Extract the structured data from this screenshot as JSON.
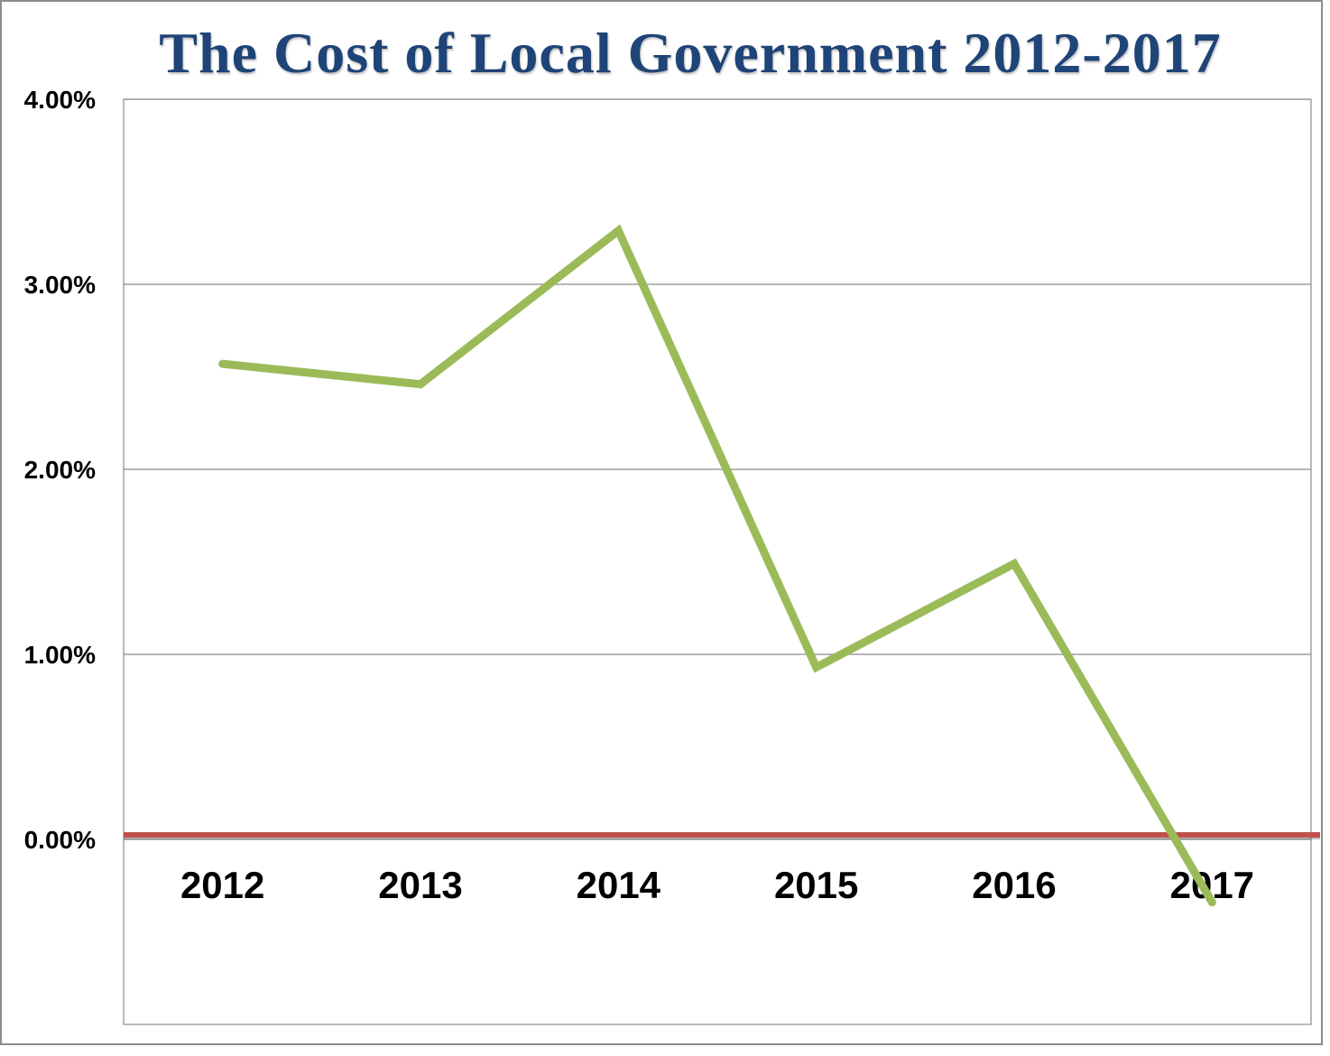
{
  "chart_data": {
    "type": "line",
    "title": "The Cost of Local Government 2012-2017",
    "xlabel": "",
    "ylabel": "",
    "categories": [
      "2012",
      "2013",
      "2014",
      "2015",
      "2016",
      "2017"
    ],
    "series": [
      {
        "values": [
          2.57,
          2.46,
          3.29,
          0.93,
          1.49,
          -0.34
        ],
        "color": "#9BBB59"
      }
    ],
    "reference_line": {
      "value": 0.0,
      "color": "#C0504D"
    },
    "ylim": [
      -1,
      4
    ],
    "yticks": [
      0,
      1,
      2,
      3,
      4
    ],
    "ytick_labels": [
      "0.00%",
      "1.00%",
      "2.00%",
      "3.00%",
      "4.00%"
    ],
    "grid": true,
    "legend": "none",
    "title_color": "#1F4477"
  }
}
